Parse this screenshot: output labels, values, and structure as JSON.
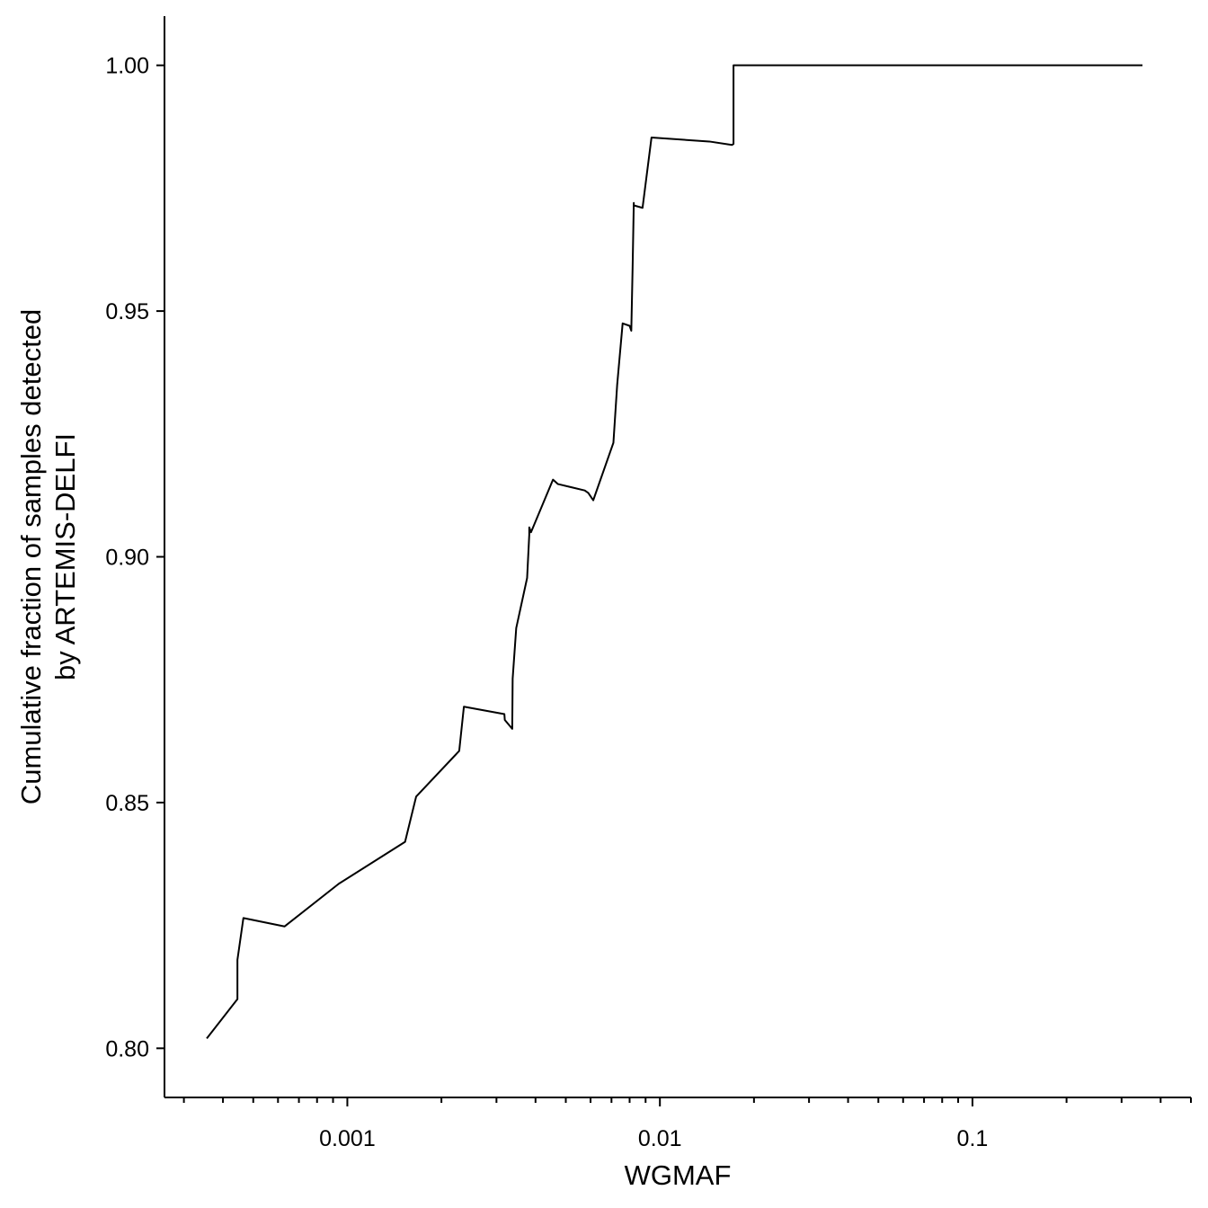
{
  "chart_data": {
    "type": "line",
    "title": "",
    "xlabel": "WGMAF",
    "ylabel_lines": [
      "Cumulative fraction of samples detected",
      "by ARTEMIS-DELFI"
    ],
    "xscale": "log10",
    "xlim": [
      0.00026,
      0.5
    ],
    "ylim": [
      0.79,
      1.01
    ],
    "grid": false,
    "legend": "none",
    "line_color": "#000000",
    "x_ticks": [
      {
        "value": 0.001,
        "label": "0.001"
      },
      {
        "value": 0.01,
        "label": "0.01"
      },
      {
        "value": 0.1,
        "label": "0.1"
      }
    ],
    "y_ticks": [
      {
        "value": 0.8,
        "label": "0.80"
      },
      {
        "value": 0.85,
        "label": "0.85"
      },
      {
        "value": 0.9,
        "label": "0.90"
      },
      {
        "value": 0.95,
        "label": "0.95"
      },
      {
        "value": 1.0,
        "label": "1.00"
      }
    ],
    "series": [
      {
        "x": [
          0.000355,
          0.000445,
          0.000445,
          0.000465,
          0.00063,
          0.00094,
          0.00153,
          0.00166,
          0.00228,
          0.00236,
          0.00318,
          0.00319,
          0.00337,
          0.00338,
          0.00347,
          0.00376,
          0.00382,
          0.00382,
          0.00387,
          0.00455,
          0.00472,
          0.00575,
          0.0059,
          0.00612,
          0.0071,
          0.0073,
          0.0076,
          0.008,
          0.0081,
          0.00818,
          0.00818,
          0.00825,
          0.00825,
          0.0088,
          0.0094,
          0.0144,
          0.017,
          0.0172,
          0.0172,
          0.35
        ],
        "y": [
          0.802,
          0.81,
          0.818,
          0.8265,
          0.8248,
          0.8335,
          0.842,
          0.8512,
          0.8605,
          0.8695,
          0.868,
          0.8668,
          0.865,
          0.8752,
          0.8855,
          0.8957,
          0.9045,
          0.906,
          0.905,
          0.9157,
          0.9148,
          0.9135,
          0.913,
          0.9115,
          0.9232,
          0.935,
          0.9475,
          0.947,
          0.946,
          0.959,
          0.959,
          0.972,
          0.9715,
          0.971,
          0.9853,
          0.9845,
          0.9838,
          0.984,
          1.0,
          1.0
        ]
      }
    ]
  }
}
